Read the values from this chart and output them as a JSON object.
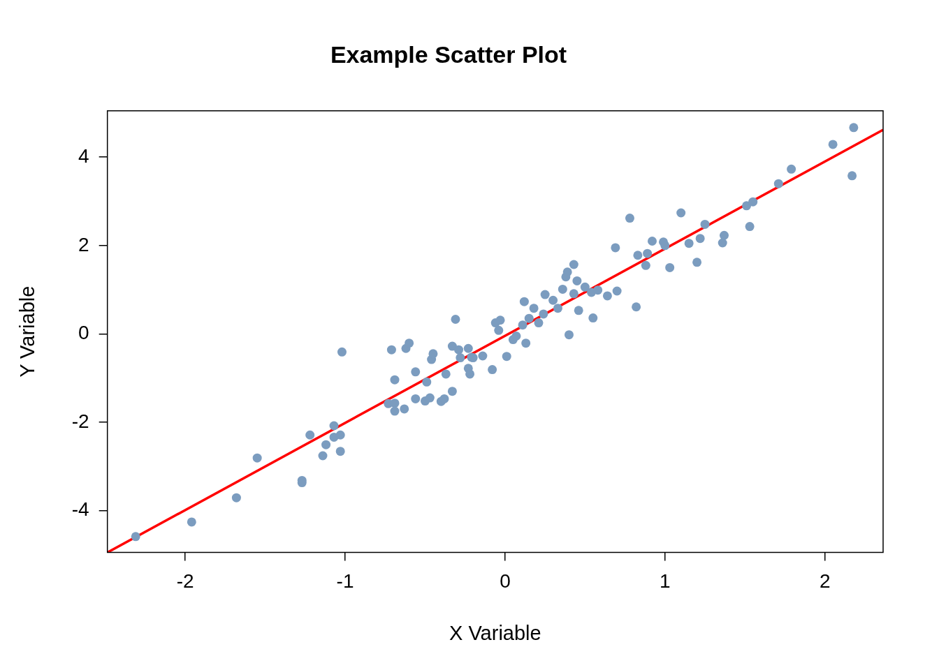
{
  "chart_data": {
    "type": "scatter",
    "title": "Example Scatter Plot",
    "xlabel": "X Variable",
    "ylabel": "Y Variable",
    "xlim": [
      -2.487,
      2.364
    ],
    "ylim": [
      -4.95,
      5.05
    ],
    "xticks": [
      -2,
      -1,
      0,
      1,
      2
    ],
    "yticks": [
      -4,
      -2,
      0,
      2,
      4
    ],
    "grid": false,
    "legend": false,
    "marker": "circle",
    "series": [
      {
        "color": "#7b9cbf",
        "x": [
          -2.31,
          -1.96,
          -1.68,
          -1.55,
          -1.27,
          -1.27,
          -1.22,
          -1.14,
          -1.12,
          -1.07,
          -1.07,
          -1.03,
          -1.03,
          -1.02,
          -0.73,
          -0.71,
          -0.69,
          -0.69,
          -0.69,
          -0.63,
          -0.62,
          -0.6,
          -0.56,
          -0.56,
          -0.5,
          -0.49,
          -0.47,
          -0.46,
          -0.45,
          -0.4,
          -0.38,
          -0.37,
          -0.33,
          -0.33,
          -0.31,
          -0.29,
          -0.28,
          -0.23,
          -0.23,
          -0.22,
          -0.21,
          -0.2,
          -0.14,
          -0.08,
          -0.06,
          -0.04,
          -0.03,
          0.01,
          0.05,
          0.07,
          0.11,
          0.12,
          0.13,
          0.15,
          0.18,
          0.21,
          0.24,
          0.25,
          0.3,
          0.33,
          0.36,
          0.38,
          0.39,
          0.4,
          0.43,
          0.43,
          0.45,
          0.46,
          0.5,
          0.54,
          0.55,
          0.58,
          0.64,
          0.69,
          0.7,
          0.78,
          0.82,
          0.83,
          0.88,
          0.89,
          0.92,
          0.99,
          1.0,
          1.03,
          1.1,
          1.15,
          1.2,
          1.22,
          1.25,
          1.36,
          1.37,
          1.51,
          1.53,
          1.55,
          1.71,
          1.79,
          2.05,
          2.17,
          2.18
        ],
        "values": [
          -4.59,
          -4.26,
          -3.71,
          -2.81,
          -3.32,
          -3.37,
          -2.29,
          -2.76,
          -2.51,
          -2.34,
          -2.08,
          -2.29,
          -2.66,
          -0.41,
          -1.58,
          -0.36,
          -1.04,
          -1.57,
          -1.75,
          -1.7,
          -0.33,
          -0.21,
          -0.86,
          -1.47,
          -1.52,
          -1.09,
          -1.45,
          -0.58,
          -0.45,
          -1.53,
          -1.47,
          -0.91,
          -1.3,
          -0.28,
          0.33,
          -0.36,
          -0.54,
          -0.33,
          -0.78,
          -0.91,
          -0.53,
          -0.54,
          -0.5,
          -0.81,
          0.25,
          0.08,
          0.31,
          -0.51,
          -0.13,
          -0.05,
          0.2,
          0.73,
          -0.21,
          0.35,
          0.58,
          0.25,
          0.45,
          0.89,
          0.76,
          0.58,
          1.01,
          1.29,
          1.4,
          -0.02,
          1.57,
          0.91,
          1.2,
          0.53,
          1.06,
          0.94,
          0.36,
          0.99,
          0.86,
          1.95,
          0.97,
          2.62,
          0.61,
          1.78,
          1.55,
          1.82,
          2.1,
          2.08,
          2.0,
          1.5,
          2.74,
          2.05,
          1.62,
          2.16,
          2.48,
          2.06,
          2.23,
          2.9,
          2.43,
          2.99,
          3.4,
          3.73,
          4.29,
          3.58,
          4.67
        ]
      },
      {
        "type": "line",
        "color": "#ff0000",
        "marker": "none",
        "line_style": "solid",
        "x": [
          -2.487,
          2.364
        ],
        "values": [
          -4.95,
          4.62
        ]
      }
    ]
  }
}
